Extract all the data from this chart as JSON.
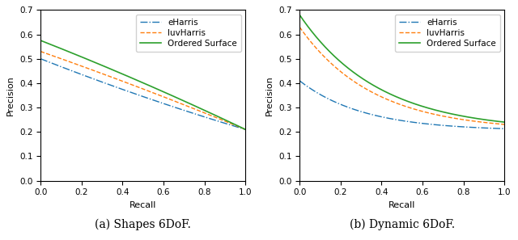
{
  "subplot_a": {
    "caption": "(a) Shapes 6DoF.",
    "ylim": [
      0.0,
      0.7
    ],
    "yticks": [
      0.0,
      0.1,
      0.2,
      0.3,
      0.4,
      0.5,
      0.6,
      0.7
    ]
  },
  "subplot_b": {
    "caption": "(b) Dynamic 6DoF.",
    "ylim": [
      0.0,
      0.7
    ],
    "yticks": [
      0.0,
      0.1,
      0.2,
      0.3,
      0.4,
      0.5,
      0.6,
      0.7
    ]
  },
  "eharris_color": "#1f77b4",
  "luvharris_color": "#ff7f0e",
  "ordered_color": "#2ca02c",
  "xlabel": "Recall",
  "ylabel": "Precision",
  "legend_labels": [
    "eHarris",
    "luvHarris",
    "Ordered Surface"
  ],
  "caption_fontsize": 10,
  "label_fontsize": 8,
  "tick_fontsize": 7.5,
  "legend_fontsize": 7.5
}
